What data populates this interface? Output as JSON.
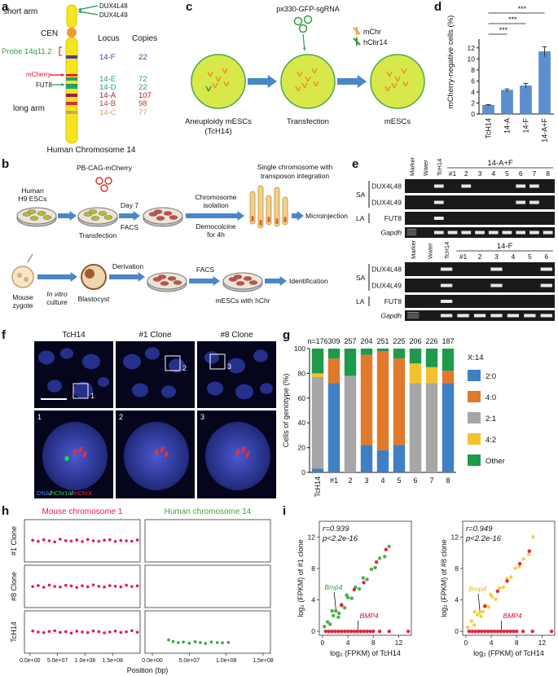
{
  "letters": [
    "a",
    "b",
    "c",
    "d",
    "e",
    "f",
    "g",
    "h",
    "i"
  ],
  "panel_a": {
    "short_arm": "short arm",
    "cen": "CEN",
    "probe": "Probe 14q11.2",
    "mcherry": "mCherry",
    "fut8": "FUT8",
    "long_arm": "long arm",
    "dux": [
      "DUX4L48",
      "DUX4L49"
    ],
    "headers": [
      "Locus",
      "Copies"
    ],
    "loci": [
      {
        "locus": "14-F",
        "copies": 22,
        "color": "#4b3f94"
      },
      {
        "locus": "14-E",
        "copies": 72,
        "color": "#22a07a"
      },
      {
        "locus": "14-D",
        "copies": 22,
        "color": "#22a07a"
      },
      {
        "locus": "14-A",
        "copies": 107,
        "color": "#a4173a"
      },
      {
        "locus": "14-B",
        "copies": 98,
        "color": "#d6303e"
      },
      {
        "locus": "14-C",
        "copies": 77,
        "color": "#d4a05a"
      }
    ],
    "caption": "Human Chromosome 14"
  },
  "panel_b": {
    "vector": "PB-CAG-mCherry",
    "single": [
      "Single chromosome with",
      "transposon integration"
    ],
    "human": [
      "Human",
      "H9 ESCs"
    ],
    "transfection": "Transfection",
    "day": "Day 7",
    "facs": "FACS",
    "isolation": [
      "Chromosome",
      "isolation"
    ],
    "democolcine": [
      "Democolcine",
      "for 4h"
    ],
    "microinjection": "Microinjection",
    "zygote": [
      "Mouse",
      "zygote"
    ],
    "culture": [
      "In vitro",
      "culture"
    ],
    "derivation": "Derivation",
    "blastocyst": "Blastocyst",
    "facs2": "FACS",
    "mescs": "mESCs with hChr",
    "identification": "Identification"
  },
  "panel_c": {
    "plasmid": "px330-GFP-sgRNA",
    "legend": [
      "mChr",
      "hChr14"
    ],
    "cells": [
      "Aneuploidy mESCs",
      "(TcH14)"
    ],
    "transfection": "Transfection",
    "result": "mESCs"
  },
  "panel_e": {
    "gels": [
      {
        "group": "14-A+F",
        "lanes": [
          "Marker",
          "Water",
          "TcH14",
          "#1",
          "2",
          "3",
          "4",
          "5",
          "6",
          "7",
          "8"
        ]
      },
      {
        "group": "14-F",
        "lanes": [
          "Marker",
          "Water",
          "TcH14",
          "#1",
          "2",
          "3",
          "4",
          "5",
          "6"
        ]
      }
    ],
    "arms": [
      "SA",
      "LA"
    ],
    "rows": [
      "DUX4L48",
      "DUX4L49",
      "FUT8",
      "Gapdh"
    ]
  },
  "panel_f": {
    "columns": [
      "TcH14",
      "#1 Clone",
      "#8 Clone"
    ],
    "insets": [
      "1",
      "2",
      "3"
    ],
    "stain": [
      "DNA",
      "/",
      "hChr14",
      "/",
      "mChrX"
    ]
  },
  "chart_data": [
    {
      "type": "bar",
      "categories": [
        "TcH14",
        "14-A",
        "14-F",
        "14-A+F"
      ],
      "values": [
        1.6,
        4.3,
        5.1,
        11.3
      ],
      "errors": [
        0.1,
        0.25,
        0.45,
        0.9
      ],
      "color": "#5b8fd0",
      "ylabel": "mCherry-negative cells (%)",
      "ylim": [
        0,
        13
      ],
      "yticks": [
        0,
        2,
        4,
        6,
        8,
        10,
        12
      ],
      "significance": [
        "***",
        "***",
        "***"
      ]
    },
    {
      "type": "stacked_bar",
      "categories": [
        "TcH14",
        "#1",
        "2",
        "3",
        "4",
        "5",
        "6",
        "7",
        "8"
      ],
      "n_labels": [
        "n=176",
        "309",
        "257",
        "204",
        "251",
        "225",
        "206",
        "226",
        "187"
      ],
      "series": [
        {
          "name": "2:0",
          "color": "#3f7fc4",
          "values": [
            3,
            72,
            0,
            22,
            18,
            22,
            0,
            0,
            72
          ]
        },
        {
          "name": "4:0",
          "color": "#e07a2a",
          "values": [
            0,
            20,
            0,
            73,
            80,
            70,
            0,
            0,
            10
          ]
        },
        {
          "name": "2:1",
          "color": "#a6a6a6",
          "values": [
            74,
            0,
            78,
            0,
            0,
            0,
            72,
            72,
            0
          ]
        },
        {
          "name": "4:2",
          "color": "#f2c12e",
          "values": [
            3,
            0,
            0,
            0,
            0,
            0,
            16,
            13,
            0
          ]
        },
        {
          "name": "Other",
          "color": "#1e9a4a",
          "values": [
            20,
            8,
            22,
            5,
            2,
            8,
            12,
            15,
            18
          ]
        }
      ],
      "legend_title": "X:14",
      "ylabel": "Cells of genotype (%)",
      "ylim": [
        0,
        100
      ],
      "yticks": [
        0,
        20,
        40,
        60,
        80,
        100
      ]
    },
    {
      "type": "facet_scatter",
      "xlabel": "Position (bp)",
      "ylim": [
        0,
        4
      ],
      "columns": [
        {
          "title": "Mouse chromosome 1",
          "color": "#e8194b",
          "xlim": [
            -10000000,
            200000000
          ],
          "xticks": [
            {
              "value": 0,
              "label": "0.0e+00"
            },
            {
              "value": 50000000,
              "label": "5.0e+07"
            },
            {
              "value": 100000000,
              "label": "1.0e+08"
            },
            {
              "value": 150000000,
              "label": "1.5e+08"
            }
          ]
        },
        {
          "title": "Human chromosome 14",
          "color": "#3aa63a",
          "xlim": [
            -10000000,
            160000000
          ],
          "xticks": [
            {
              "value": 0,
              "label": "0.0e+00"
            },
            {
              "value": 50000000,
              "label": "5.0e+07"
            },
            {
              "value": 100000000,
              "label": "1.0e+08"
            },
            {
              "value": 150000000,
              "label": "1.5e+08"
            }
          ]
        }
      ],
      "rows": [
        {
          "label": "#1 Clone",
          "panels": [
            {
              "x": [
                5000000,
                15000000,
                25000000,
                35000000,
                45000000,
                55000000,
                65000000,
                75000000,
                85000000,
                95000000,
                105000000,
                115000000,
                125000000,
                135000000,
                145000000,
                155000000,
                165000000,
                175000000,
                185000000,
                195000000
              ],
              "y": [
                2.05,
                1.95,
                2.1,
                2.0,
                1.9,
                2.15,
                2.02,
                1.98,
                2.08,
                1.93,
                2.12,
                2.0,
                1.96,
                2.06,
                2.1,
                1.94,
                2.03,
                2.0,
                1.97,
                2.08
              ]
            },
            {
              "x": [],
              "y": []
            }
          ]
        },
        {
          "label": "#8 Clone",
          "panels": [
            {
              "x": [
                5000000,
                15000000,
                25000000,
                35000000,
                45000000,
                55000000,
                65000000,
                75000000,
                85000000,
                95000000,
                105000000,
                115000000,
                125000000,
                135000000,
                145000000,
                155000000,
                165000000,
                175000000,
                185000000,
                195000000
              ],
              "y": [
                1.98,
                2.08,
                1.92,
                2.12,
                2.0,
                1.95,
                2.1,
                2.04,
                1.9,
                2.06,
                1.97,
                2.14,
                2.01,
                1.94,
                2.07,
                2.02,
                1.96,
                2.11,
                1.99,
                2.05
              ]
            },
            {
              "x": [],
              "y": []
            }
          ]
        },
        {
          "label": "TcH14",
          "panels": [
            {
              "x": [
                5000000,
                15000000,
                25000000,
                35000000,
                45000000,
                55000000,
                65000000,
                75000000,
                85000000,
                95000000,
                105000000,
                115000000,
                125000000,
                135000000,
                145000000,
                155000000,
                165000000,
                175000000,
                185000000,
                195000000
              ],
              "y": [
                2.1,
                2.0,
                1.94,
                2.06,
                2.12,
                1.97,
                2.03,
                1.9,
                2.08,
                2.0,
                1.95,
                2.1,
                2.04,
                1.92,
                2.0,
                2.09,
                1.96,
                2.02,
                2.13,
                1.98
              ]
            },
            {
              "x": [
                22000000,
                28000000,
                35000000,
                42000000,
                50000000,
                58000000,
                65000000,
                72000000,
                80000000,
                88000000,
                95000000,
                103000000
              ],
              "y": [
                1.25,
                1.1,
                1.0,
                1.05,
                0.95,
                1.08,
                1.0,
                0.92,
                1.05,
                1.0,
                0.98,
                1.02
              ]
            }
          ]
        }
      ]
    },
    {
      "type": "scatter",
      "xlabel": "log₂ (FPKM) of TcH14",
      "ylabel": "log₂ (FPKM) of #1 clone",
      "xlim": [
        -0.5,
        14
      ],
      "ylim": [
        -0.5,
        14
      ],
      "xticks": [
        0,
        4,
        8,
        12
      ],
      "yticks": [
        0,
        4,
        8,
        12
      ],
      "annotations": [
        "r=0.939",
        "p<2.2e-16"
      ],
      "series": [
        {
          "color": "#3aa63a",
          "x": [
            0.3,
            0.8,
            1.2,
            1.7,
            2.1,
            2.6,
            3,
            3.5,
            4,
            4.6,
            5.2,
            5.8,
            6.4,
            7,
            7.7,
            8.3,
            9,
            9.8,
            10.5,
            1.5,
            2.5,
            3.8
          ],
          "y": [
            0.6,
            1.2,
            0.9,
            2.0,
            2.6,
            2.3,
            3.4,
            3.0,
            4.3,
            4.2,
            5.6,
            5.4,
            6.8,
            6.6,
            7.9,
            8.1,
            9.3,
            9.5,
            10.8,
            2.6,
            1.8,
            4.6
          ]
        },
        {
          "color": "#e0102a",
          "x": [
            0.5,
            1,
            1.5,
            2,
            2.5,
            3,
            3.5,
            4,
            4.5,
            5,
            5.5,
            6,
            6.5,
            7,
            7.5,
            8,
            9,
            10.5,
            13.5,
            3,
            5,
            6.5,
            8.5,
            10
          ],
          "y": [
            0,
            0,
            0,
            0,
            0,
            0,
            0,
            0,
            0,
            0,
            0,
            0,
            0,
            0,
            0,
            0,
            0,
            0,
            0,
            3.3,
            5.3,
            6.2,
            8.8,
            10.4
          ]
        }
      ],
      "callouts": [
        {
          "text": "Bmp4",
          "x": 2.1,
          "y": 2.6,
          "color": "#2f9e44"
        },
        {
          "text": "BMP4",
          "x": 5.6,
          "y": 0,
          "color": "#d9102a"
        }
      ]
    },
    {
      "type": "scatter",
      "xlabel": "log₂ (FPKM) of TcH14",
      "ylabel": "log₂ (FPKM) of #8 clone",
      "xlim": [
        -0.5,
        14
      ],
      "ylim": [
        -0.5,
        14
      ],
      "xticks": [
        0,
        4,
        8,
        12
      ],
      "yticks": [
        0,
        4,
        8,
        12
      ],
      "annotations": [
        "r=0.949",
        "p<2.2e-16"
      ],
      "series": [
        {
          "color": "#f2cc2a",
          "x": [
            0.3,
            0.9,
            1.3,
            1.8,
            2.2,
            2.7,
            3.1,
            3.6,
            4.1,
            4.7,
            5.3,
            5.9,
            6.5,
            7.1,
            7.8,
            8.4,
            9.1,
            9.9,
            10.6,
            1.4,
            2.4,
            3.9
          ],
          "y": [
            0.5,
            1.3,
            0.8,
            2.1,
            2.4,
            2.5,
            3.3,
            3.1,
            4.4,
            4.1,
            5.5,
            5.6,
            6.7,
            6.9,
            8.0,
            8.2,
            9.2,
            9.8,
            12.0,
            2.5,
            1.9,
            4.7
          ]
        },
        {
          "color": "#e0102a",
          "x": [
            0.5,
            1,
            1.5,
            2,
            2.5,
            3,
            3.5,
            4,
            4.5,
            5,
            5.5,
            6,
            6.5,
            7,
            7.5,
            8,
            9,
            10.5,
            13.5,
            3,
            5,
            6.5,
            8.5,
            10
          ],
          "y": [
            0,
            0,
            0,
            0,
            0,
            0,
            0,
            0,
            0,
            0,
            0,
            0,
            0,
            0,
            0,
            0,
            0,
            0,
            0,
            3.2,
            5.1,
            6.4,
            8.6,
            10.2
          ]
        }
      ],
      "callouts": [
        {
          "text": "Bmp4",
          "x": 2.2,
          "y": 2.4,
          "color": "#e0b820"
        },
        {
          "text": "BMP4",
          "x": 5.6,
          "y": 0,
          "color": "#d9102a"
        }
      ]
    }
  ]
}
